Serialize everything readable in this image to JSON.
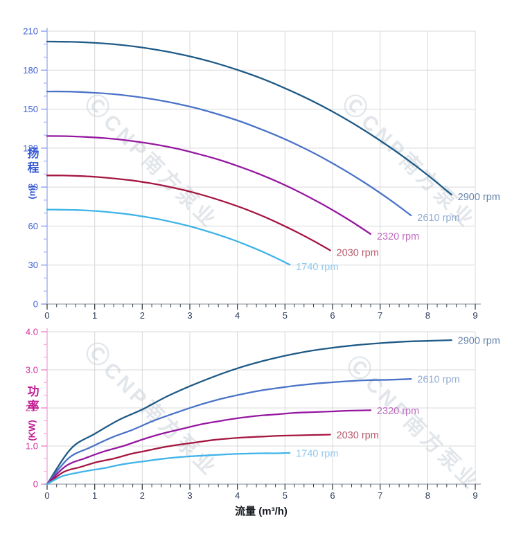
{
  "page": {
    "background": "#ffffff"
  },
  "watermark": {
    "logo": "Ⓒ",
    "text": "CNP南方泵业",
    "color": "#ccd3da",
    "opacity": 0.55
  },
  "x_axis": {
    "title": "流量 (m³/h)",
    "title_color": "#14181e",
    "xlim": [
      0,
      9
    ],
    "ticks": [
      0,
      1,
      2,
      3,
      4,
      5,
      6,
      7,
      8,
      9
    ],
    "tick_labels": [
      "0",
      "1",
      "2",
      "3",
      "4",
      "5",
      "6",
      "7",
      "8",
      "9"
    ],
    "minor_divisions": 5,
    "line_color": "#9aa2ac",
    "tick_color": "#3a4048",
    "tick_label_color": "#2b3a55"
  },
  "chart_data": [
    {
      "id": "head",
      "type": "line",
      "ylabel_cn": "扬程",
      "ylabel_unit": "(m)",
      "ylabel_color": "#3558d4",
      "ylim": [
        0,
        210
      ],
      "y_ticks": [
        0,
        30,
        60,
        90,
        120,
        150,
        180,
        210
      ],
      "y_tick_labels": [
        "0",
        "30",
        "60",
        "90",
        "120",
        "150",
        "180",
        "210"
      ],
      "y_minor_divisions": 3,
      "grid": true,
      "grid_color": "#d8d8d8",
      "axis_color": "#97a5ee",
      "tick_color": "#8da0f0",
      "minor_tick_color": "#aab7f4",
      "tick_label_color": "#4161d6",
      "legend_position": "at-curve-ends",
      "series": [
        {
          "name": "2900 rpm",
          "color": "#1e5a86",
          "label_color": "#6484ac",
          "x": [
            0,
            0.5,
            1,
            1.5,
            2,
            2.5,
            3,
            3.5,
            4,
            4.5,
            5,
            5.5,
            6,
            6.5,
            7,
            7.5,
            8,
            8.5
          ],
          "y": [
            202,
            201.8,
            201,
            199.6,
            197.4,
            194.4,
            190.6,
            185.9,
            180.2,
            173.7,
            166.1,
            157.6,
            148.1,
            137.5,
            125.8,
            113.1,
            99.2,
            84.2
          ]
        },
        {
          "name": "2610 rpm",
          "color": "#4a73c8",
          "label_color": "#92abd4",
          "x": [
            0,
            0.45,
            0.9,
            1.35,
            1.8,
            2.25,
            2.7,
            3.15,
            3.6,
            4.05,
            4.5,
            4.95,
            5.4,
            5.85,
            6.3,
            6.75,
            7.2,
            7.65
          ],
          "y": [
            163.6,
            163.5,
            162.8,
            161.7,
            159.9,
            157.5,
            154.4,
            150.6,
            146,
            140.7,
            134.5,
            127.7,
            120,
            111.4,
            101.9,
            91.6,
            80.4,
            68.2
          ]
        },
        {
          "name": "2320 rpm",
          "color": "#9517a0",
          "label_color": "#bc6cbe",
          "x": [
            0,
            0.4,
            0.8,
            1.2,
            1.6,
            2,
            2.4,
            2.8,
            3.2,
            3.6,
            4,
            4.4,
            4.8,
            5.2,
            5.6,
            6,
            6.4,
            6.8
          ],
          "y": [
            129.3,
            129.2,
            128.6,
            127.7,
            126.3,
            124.4,
            122,
            119,
            115.3,
            111.2,
            106.3,
            100.9,
            94.8,
            88,
            80.5,
            72.4,
            63.5,
            53.9
          ]
        },
        {
          "name": "2030 rpm",
          "color": "#a41640",
          "label_color": "#b65a6b",
          "x": [
            0,
            0.35,
            0.7,
            1.05,
            1.4,
            1.75,
            2.1,
            2.45,
            2.8,
            3.15,
            3.5,
            3.85,
            4.2,
            4.55,
            4.9,
            5.25,
            5.6,
            5.95
          ],
          "y": [
            99,
            98.9,
            98.5,
            97.8,
            96.7,
            95.3,
            93.4,
            91.1,
            88.3,
            85.1,
            81.4,
            77.2,
            72.6,
            67.4,
            61.6,
            55.4,
            48.6,
            41.3
          ]
        },
        {
          "name": "1740 rpm",
          "color": "#3fb4e8",
          "label_color": "#90c8ee",
          "x": [
            0,
            0.3,
            0.6,
            0.9,
            1.2,
            1.5,
            1.8,
            2.1,
            2.4,
            2.7,
            3,
            3.3,
            3.6,
            3.9,
            4.2,
            4.5,
            4.8,
            5.1
          ],
          "y": [
            72.7,
            72.6,
            72.4,
            71.9,
            71.1,
            70,
            68.6,
            66.9,
            64.9,
            62.5,
            59.8,
            56.7,
            53.3,
            49.5,
            45.3,
            40.7,
            35.7,
            30.3
          ]
        }
      ]
    },
    {
      "id": "power",
      "type": "line",
      "ylabel_cn": "功率",
      "ylabel_unit": "(KW)",
      "ylabel_color": "#c21a93",
      "ylim": [
        0,
        4
      ],
      "y_ticks": [
        0,
        1,
        2,
        3,
        4
      ],
      "y_tick_labels": [
        "0",
        "1.0",
        "2.0",
        "3.0",
        "4.0"
      ],
      "y_minor_divisions": 3,
      "grid": true,
      "grid_color": "#d8d8d8",
      "axis_color": "#efa0d4",
      "tick_color": "#ec89ca",
      "minor_tick_color": "#f3b1dd",
      "tick_label_color": "#d4309e",
      "legend_position": "at-curve-ends",
      "series": [
        {
          "name": "2900 rpm",
          "color": "#1e5a86",
          "label_color": "#6484ac",
          "x": [
            0,
            0.5,
            1,
            1.5,
            2,
            2.5,
            3,
            3.5,
            4,
            4.5,
            5,
            5.5,
            6,
            6.5,
            7,
            7.5,
            8,
            8.5
          ],
          "y": [
            0,
            0.93,
            1.32,
            1.68,
            1.96,
            2.29,
            2.57,
            2.82,
            3.04,
            3.22,
            3.37,
            3.49,
            3.58,
            3.65,
            3.7,
            3.74,
            3.76,
            3.78
          ]
        },
        {
          "name": "2610 rpm",
          "color": "#4a73c8",
          "label_color": "#92abd4",
          "x": [
            0,
            0.45,
            0.9,
            1.35,
            1.8,
            2.25,
            2.7,
            3.15,
            3.6,
            4.05,
            4.5,
            4.95,
            5.4,
            5.85,
            6.3,
            6.75,
            7.2,
            7.65
          ],
          "y": [
            0,
            0.68,
            0.96,
            1.22,
            1.43,
            1.67,
            1.87,
            2.06,
            2.22,
            2.35,
            2.46,
            2.54,
            2.61,
            2.66,
            2.7,
            2.73,
            2.74,
            2.76
          ]
        },
        {
          "name": "2320 rpm",
          "color": "#9517a0",
          "label_color": "#bc6cbe",
          "x": [
            0,
            0.4,
            0.8,
            1.2,
            1.6,
            2,
            2.4,
            2.8,
            3.2,
            3.6,
            4,
            4.4,
            4.8,
            5.2,
            5.6,
            6,
            6.4,
            6.8
          ],
          "y": [
            0,
            0.48,
            0.68,
            0.86,
            1,
            1.17,
            1.32,
            1.44,
            1.56,
            1.65,
            1.73,
            1.79,
            1.83,
            1.87,
            1.89,
            1.91,
            1.93,
            1.94
          ]
        },
        {
          "name": "2030 rpm",
          "color": "#a41640",
          "label_color": "#b65a6b",
          "x": [
            0,
            0.35,
            0.7,
            1.05,
            1.4,
            1.75,
            2.1,
            2.45,
            2.8,
            3.15,
            3.5,
            3.85,
            4.2,
            4.55,
            4.9,
            5.25,
            5.6,
            5.95
          ],
          "y": [
            0,
            0.32,
            0.45,
            0.58,
            0.67,
            0.79,
            0.88,
            0.97,
            1.04,
            1.1,
            1.16,
            1.2,
            1.23,
            1.25,
            1.27,
            1.28,
            1.29,
            1.3
          ]
        },
        {
          "name": "1740 rpm",
          "color": "#3fb4e8",
          "label_color": "#90c8ee",
          "x": [
            0,
            0.3,
            0.6,
            0.9,
            1.2,
            1.5,
            1.8,
            2.1,
            2.4,
            2.7,
            3,
            3.3,
            3.6,
            3.9,
            4.2,
            4.5,
            4.8,
            5.1
          ],
          "y": [
            0,
            0.2,
            0.29,
            0.36,
            0.42,
            0.5,
            0.56,
            0.61,
            0.66,
            0.7,
            0.73,
            0.75,
            0.77,
            0.79,
            0.8,
            0.81,
            0.81,
            0.82
          ]
        }
      ]
    }
  ]
}
